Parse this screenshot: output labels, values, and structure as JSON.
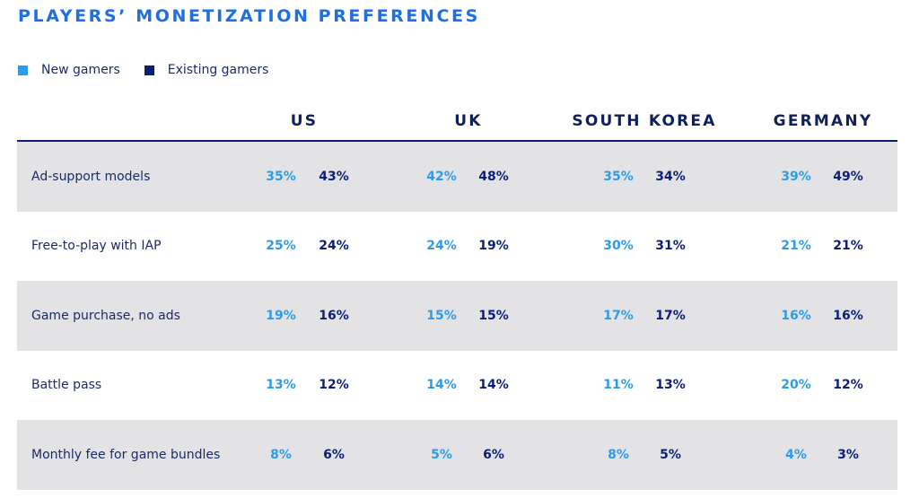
{
  "chart_data": {
    "type": "table",
    "title": "PLAYERS’ MONETIZATION PREFERENCES",
    "legend": [
      {
        "name": "New gamers",
        "color": "#2e9be8"
      },
      {
        "name": "Existing gamers",
        "color": "#0b1f7a"
      }
    ],
    "columns": [
      "US",
      "UK",
      "SOUTH KOREA",
      "GERMANY"
    ],
    "series": [
      {
        "name": "New gamers",
        "color": "#2e9be8"
      },
      {
        "name": "Existing gamers",
        "color": "#0b1f7a"
      }
    ],
    "rows": [
      {
        "label": "Ad-support models",
        "values": [
          [
            "35%",
            "43%"
          ],
          [
            "42%",
            "48%"
          ],
          [
            "35%",
            "34%"
          ],
          [
            "39%",
            "49%"
          ]
        ]
      },
      {
        "label": "Free-to-play with IAP",
        "values": [
          [
            "25%",
            "24%"
          ],
          [
            "24%",
            "19%"
          ],
          [
            "30%",
            "31%"
          ],
          [
            "21%",
            "21%"
          ]
        ]
      },
      {
        "label": "Game purchase, no ads",
        "values": [
          [
            "19%",
            "16%"
          ],
          [
            "15%",
            "15%"
          ],
          [
            "17%",
            "17%"
          ],
          [
            "16%",
            "16%"
          ]
        ]
      },
      {
        "label": "Battle pass",
        "values": [
          [
            "13%",
            "12%"
          ],
          [
            "14%",
            "14%"
          ],
          [
            "11%",
            "13%"
          ],
          [
            "20%",
            "12%"
          ]
        ]
      },
      {
        "label": "Monthly fee for game bundles",
        "values": [
          [
            "8%",
            "6%"
          ],
          [
            "5%",
            "6%"
          ],
          [
            "8%",
            "5%"
          ],
          [
            "4%",
            "3%"
          ]
        ]
      }
    ]
  }
}
